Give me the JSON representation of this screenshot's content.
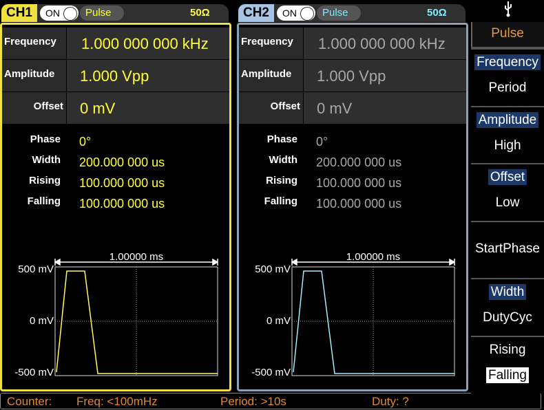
{
  "channels": [
    {
      "name": "CH1",
      "state": "ON",
      "waveform": "Pulse",
      "load": "50Ω",
      "params": [
        {
          "label": "Frequency",
          "value": "1.000 000 000 kHz"
        },
        {
          "label": "Amplitude",
          "value": "1.000 Vpp"
        },
        {
          "label": "Offset",
          "value": "0 mV"
        }
      ],
      "details": [
        {
          "label": "Phase",
          "value": "0°"
        },
        {
          "label": "Width",
          "value": "200.000 000 us"
        },
        {
          "label": "Rising",
          "value": "100.000 000 us"
        },
        {
          "label": "Falling",
          "value": "100.000 000 us"
        }
      ],
      "preview": {
        "time_span": "1.00000 ms",
        "y_labels": [
          "500 mV",
          "0 mV",
          "-500 mV"
        ]
      }
    },
    {
      "name": "CH2",
      "state": "ON",
      "waveform": "Pulse",
      "load": "50Ω",
      "params": [
        {
          "label": "Frequency",
          "value": "1.000 000 000 kHz"
        },
        {
          "label": "Amplitude",
          "value": "1.000 Vpp"
        },
        {
          "label": "Offset",
          "value": "0 mV"
        }
      ],
      "details": [
        {
          "label": "Phase",
          "value": "0°"
        },
        {
          "label": "Width",
          "value": "200.000 000 us"
        },
        {
          "label": "Rising",
          "value": "100.000 000 us"
        },
        {
          "label": "Falling",
          "value": "100.000 000 us"
        }
      ],
      "preview": {
        "time_span": "1.00000 ms",
        "y_labels": [
          "500 mV",
          "0 mV",
          "-500 mV"
        ]
      }
    }
  ],
  "menu": {
    "title": "Pulse",
    "items": [
      {
        "primary": "Frequency",
        "secondary": "Period"
      },
      {
        "primary": "Amplitude",
        "secondary": "High"
      },
      {
        "primary": "Offset",
        "secondary": "Low"
      },
      {
        "primary": "StartPhase"
      },
      {
        "primary": "Width",
        "secondary": "DutyCyc"
      },
      {
        "primary": "Rising",
        "secondary": "Falling"
      }
    ]
  },
  "status": {
    "counter": "Counter:",
    "freq": "Freq: <100mHz",
    "period": "Period: >10s",
    "duty": "Duty: ?"
  }
}
